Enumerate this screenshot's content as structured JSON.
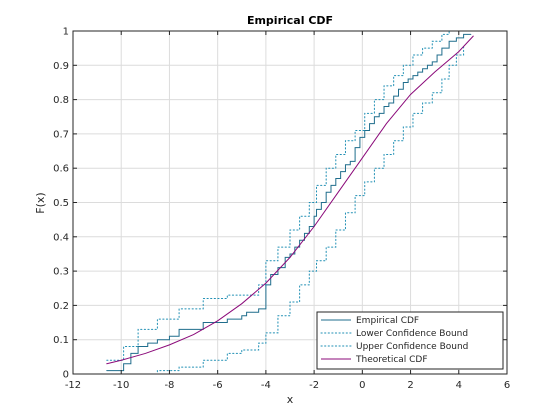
{
  "chart_data": {
    "type": "line",
    "title": "Empirical CDF",
    "xlabel": "x",
    "ylabel": "F(x)",
    "xlim": [
      -12,
      6
    ],
    "ylim": [
      0,
      1
    ],
    "xticks": [
      "-12",
      "-10",
      "-8",
      "-6",
      "-4",
      "-2",
      "0",
      "2",
      "4",
      "6"
    ],
    "yticks": [
      "0",
      "0.1",
      "0.2",
      "0.3",
      "0.4",
      "0.5",
      "0.6",
      "0.7",
      "0.8",
      "0.9",
      "1"
    ],
    "grid": true,
    "legend_position": "bottom-right",
    "colors": {
      "empirical": "#1f6d8c",
      "bounds": "#1f8fb4",
      "theoretical": "#8b0a7a"
    },
    "series": [
      {
        "name": "Empirical CDF",
        "style": "stairs",
        "x": [
          -10.6,
          -9.9,
          -9.6,
          -9.3,
          -8.9,
          -8.5,
          -8.0,
          -7.6,
          -6.6,
          -5.6,
          -5.0,
          -4.8,
          -4.3,
          -4.0,
          -3.8,
          -3.5,
          -3.2,
          -3.0,
          -2.8,
          -2.6,
          -2.4,
          -2.2,
          -2.0,
          -1.9,
          -1.7,
          -1.5,
          -1.3,
          -1.1,
          -0.9,
          -0.7,
          -0.5,
          -0.3,
          -0.1,
          0.1,
          0.3,
          0.5,
          0.7,
          0.9,
          1.1,
          1.3,
          1.5,
          1.7,
          1.9,
          2.1,
          2.3,
          2.5,
          2.7,
          2.9,
          3.1,
          3.3,
          3.6,
          3.9,
          4.2,
          4.5
        ],
        "y": [
          0.01,
          0.03,
          0.06,
          0.08,
          0.09,
          0.1,
          0.11,
          0.13,
          0.15,
          0.16,
          0.17,
          0.18,
          0.19,
          0.26,
          0.29,
          0.31,
          0.34,
          0.35,
          0.37,
          0.39,
          0.41,
          0.43,
          0.46,
          0.48,
          0.5,
          0.53,
          0.55,
          0.57,
          0.59,
          0.61,
          0.62,
          0.66,
          0.69,
          0.71,
          0.73,
          0.75,
          0.76,
          0.78,
          0.79,
          0.81,
          0.83,
          0.85,
          0.86,
          0.87,
          0.88,
          0.89,
          0.9,
          0.91,
          0.93,
          0.95,
          0.97,
          0.98,
          0.99,
          0.99
        ]
      },
      {
        "name": "Lower Confidence Bound",
        "style": "dotted-stairs",
        "x": [
          -9.6,
          -8.5,
          -7.6,
          -6.6,
          -5.6,
          -5.0,
          -4.3,
          -4.0,
          -3.5,
          -3.0,
          -2.6,
          -2.2,
          -1.9,
          -1.5,
          -1.1,
          -0.7,
          -0.3,
          0.1,
          0.5,
          0.9,
          1.3,
          1.7,
          2.1,
          2.5,
          2.9,
          3.3,
          3.6,
          3.9,
          4.2
        ],
        "y": [
          0.0,
          0.01,
          0.02,
          0.04,
          0.06,
          0.07,
          0.09,
          0.12,
          0.17,
          0.21,
          0.26,
          0.3,
          0.33,
          0.37,
          0.42,
          0.47,
          0.52,
          0.56,
          0.6,
          0.64,
          0.68,
          0.72,
          0.76,
          0.79,
          0.82,
          0.86,
          0.9,
          0.93,
          0.96
        ]
      },
      {
        "name": "Upper Confidence Bound",
        "style": "dotted-stairs",
        "x": [
          -10.6,
          -9.9,
          -9.3,
          -8.5,
          -7.6,
          -6.6,
          -5.6,
          -4.3,
          -4.0,
          -3.5,
          -3.0,
          -2.6,
          -2.2,
          -1.9,
          -1.5,
          -1.1,
          -0.7,
          -0.3,
          0.1,
          0.5,
          0.9,
          1.3,
          1.7,
          2.1,
          2.5,
          2.9,
          3.3,
          3.6,
          3.9
        ],
        "y": [
          0.04,
          0.08,
          0.13,
          0.16,
          0.19,
          0.22,
          0.23,
          0.26,
          0.33,
          0.37,
          0.42,
          0.46,
          0.5,
          0.55,
          0.6,
          0.64,
          0.68,
          0.71,
          0.76,
          0.8,
          0.84,
          0.87,
          0.9,
          0.93,
          0.95,
          0.97,
          0.99,
          1.0,
          1.0
        ]
      },
      {
        "name": "Theoretical CDF",
        "style": "smooth",
        "x": [
          -10.6,
          -10.0,
          -9.0,
          -8.0,
          -7.0,
          -6.0,
          -5.0,
          -4.0,
          -3.0,
          -2.0,
          -1.0,
          0.0,
          1.0,
          2.0,
          3.0,
          4.0,
          4.6
        ],
        "y": [
          0.03,
          0.04,
          0.06,
          0.085,
          0.115,
          0.155,
          0.205,
          0.265,
          0.34,
          0.43,
          0.53,
          0.63,
          0.73,
          0.815,
          0.88,
          0.94,
          0.985
        ]
      }
    ]
  }
}
